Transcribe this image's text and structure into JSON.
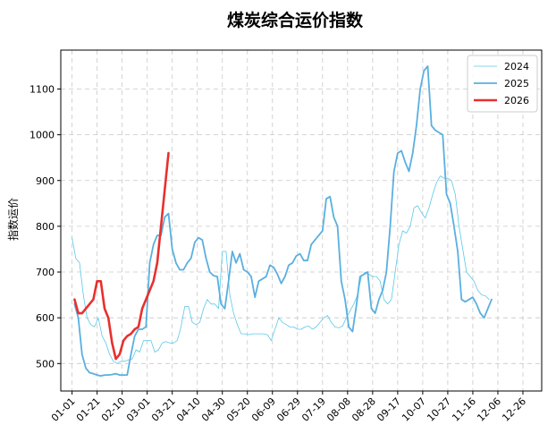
{
  "chart_data": {
    "type": "line",
    "title": "煤炭综合运价指数",
    "xlabel": "",
    "ylabel": "指数运价",
    "x_tick_labels": [
      "01-01",
      "01-21",
      "02-10",
      "03-01",
      "03-21",
      "04-10",
      "04-30",
      "05-20",
      "06-09",
      "06-29",
      "07-19",
      "08-08",
      "08-28",
      "09-17",
      "10-07",
      "10-27",
      "11-16",
      "12-06",
      "12-26"
    ],
    "y_ticks": [
      500,
      600,
      700,
      800,
      900,
      1000,
      1100
    ],
    "xlim": [
      -9,
      375
    ],
    "ylim": [
      440,
      1185
    ],
    "grid": true,
    "legend_position": "top-right",
    "colors": {
      "2024": "#5bc8e8",
      "2025": "#5aafe0",
      "2026": "#e8302e"
    },
    "series": [
      {
        "name": "2024",
        "color": "#5bc8e8",
        "day": [
          0,
          3,
          6,
          9,
          12,
          15,
          18,
          21,
          24,
          27,
          30,
          33,
          36,
          39,
          42,
          45,
          48,
          51,
          54,
          57,
          60,
          63,
          66,
          69,
          72,
          75,
          78,
          81,
          84,
          87,
          90,
          93,
          96,
          99,
          102,
          105,
          108,
          111,
          114,
          117,
          120,
          123,
          126,
          129,
          132,
          135,
          138,
          141,
          144,
          147,
          150,
          153,
          156,
          159,
          162,
          165,
          168,
          171,
          174,
          177,
          180,
          183,
          186,
          189,
          192,
          195,
          198,
          201,
          204,
          207,
          210,
          213,
          216,
          219,
          222,
          225,
          228,
          231,
          234,
          237,
          240,
          243,
          246,
          249,
          252,
          255,
          258,
          261,
          264,
          267,
          270,
          273,
          276,
          279,
          282,
          285,
          288,
          291,
          294,
          297,
          300,
          303,
          306,
          309,
          312,
          315,
          318,
          321,
          324,
          327,
          330,
          333,
          336,
          339,
          342,
          345,
          348,
          351,
          354,
          357,
          360,
          363
        ],
        "values": [
          775,
          730,
          720,
          650,
          600,
          585,
          580,
          600,
          560,
          545,
          520,
          505,
          500,
          505,
          505,
          508,
          510,
          530,
          525,
          550,
          550,
          550,
          525,
          530,
          545,
          548,
          545,
          545,
          550,
          580,
          625,
          625,
          590,
          585,
          590,
          620,
          640,
          630,
          630,
          620,
          745,
          745,
          650,
          610,
          585,
          565,
          565,
          563,
          565,
          565,
          565,
          565,
          563,
          550,
          575,
          600,
          590,
          585,
          580,
          580,
          575,
          575,
          580,
          582,
          575,
          580,
          590,
          600,
          605,
          590,
          580,
          578,
          582,
          600,
          615,
          630,
          650,
          690,
          700,
          695,
          690,
          690,
          680,
          640,
          630,
          640,
          700,
          760,
          790,
          785,
          800,
          840,
          845,
          830,
          818,
          840,
          870,
          895,
          910,
          905,
          905,
          900,
          870,
          800,
          750,
          700,
          690,
          680,
          660,
          650,
          648,
          640
        ]
      },
      {
        "name": "2025",
        "color": "#5aafe0",
        "day": [
          2,
          5,
          8,
          11,
          14,
          17,
          20,
          23,
          26,
          29,
          32,
          35,
          38,
          41,
          44,
          47,
          50,
          53,
          56,
          59,
          62,
          65,
          68,
          71,
          74,
          77,
          80,
          83,
          86,
          89,
          92,
          95,
          98,
          101,
          104,
          107,
          110,
          113,
          116,
          119,
          122,
          125,
          128,
          131,
          134,
          137,
          140,
          143,
          146,
          149,
          152,
          155,
          158,
          161,
          164,
          167,
          170,
          173,
          176,
          179,
          182,
          185,
          188,
          191,
          194,
          197,
          200,
          203,
          206,
          209,
          212,
          215,
          218,
          221,
          224,
          227,
          230,
          233,
          236,
          239,
          242,
          245,
          248,
          251,
          254,
          257,
          260,
          263,
          266,
          269,
          272,
          275,
          278,
          281,
          284,
          287,
          290,
          293,
          296,
          299,
          302,
          305,
          308,
          311,
          314,
          317,
          320,
          323,
          326,
          329,
          332,
          335,
          338,
          341,
          344,
          347,
          350,
          353,
          356,
          359,
          362,
          365
        ],
        "values": [
          630,
          600,
          520,
          490,
          480,
          478,
          475,
          473,
          475,
          475,
          476,
          478,
          475,
          475,
          475,
          520,
          560,
          575,
          575,
          580,
          720,
          760,
          780,
          780,
          820,
          828,
          750,
          720,
          705,
          705,
          720,
          730,
          765,
          775,
          770,
          730,
          700,
          692,
          690,
          630,
          620,
          680,
          745,
          720,
          740,
          705,
          700,
          690,
          645,
          680,
          685,
          690,
          715,
          710,
          695,
          675,
          690,
          715,
          720,
          735,
          740,
          725,
          725,
          760,
          770,
          780,
          790,
          860,
          865,
          820,
          800,
          680,
          640,
          580,
          570,
          625,
          690,
          695,
          700,
          620,
          610,
          640,
          660,
          700,
          800,
          920,
          960,
          965,
          940,
          920,
          960,
          1020,
          1100,
          1140,
          1150,
          1020,
          1010,
          1005,
          1000,
          870,
          850,
          800,
          745,
          640,
          635,
          640,
          645,
          630,
          610,
          600,
          620,
          640
        ]
      },
      {
        "name": "2026",
        "color": "#e8302e",
        "day": [
          2,
          5,
          8,
          11,
          14,
          17,
          20,
          23,
          26,
          29,
          32,
          35,
          38,
          41,
          44,
          47,
          50,
          53,
          56,
          59,
          62,
          65,
          68,
          71,
          74,
          77
        ],
        "values": [
          640,
          610,
          610,
          620,
          630,
          640,
          680,
          680,
          620,
          600,
          545,
          510,
          520,
          550,
          560,
          565,
          575,
          580,
          620,
          640,
          660,
          680,
          720,
          800,
          880,
          960
        ]
      }
    ]
  }
}
